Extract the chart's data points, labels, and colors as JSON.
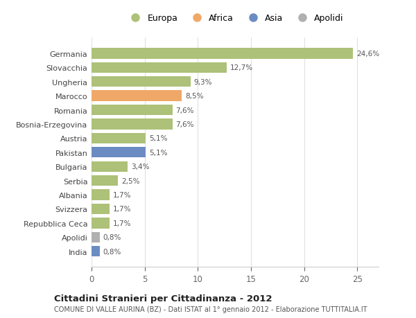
{
  "categories": [
    "Germania",
    "Slovacchia",
    "Ungheria",
    "Marocco",
    "Romania",
    "Bosnia-Erzegovina",
    "Austria",
    "Pakistan",
    "Bulgaria",
    "Serbia",
    "Albania",
    "Svizzera",
    "Repubblica Ceca",
    "Apolidi",
    "India"
  ],
  "values": [
    24.6,
    12.7,
    9.3,
    8.5,
    7.6,
    7.6,
    5.1,
    5.1,
    3.4,
    2.5,
    1.7,
    1.7,
    1.7,
    0.8,
    0.8
  ],
  "labels": [
    "24,6%",
    "12,7%",
    "9,3%",
    "8,5%",
    "7,6%",
    "7,6%",
    "5,1%",
    "5,1%",
    "3,4%",
    "2,5%",
    "1,7%",
    "1,7%",
    "1,7%",
    "0,8%",
    "0,8%"
  ],
  "colors": [
    "#adc178",
    "#adc178",
    "#adc178",
    "#f0a868",
    "#adc178",
    "#adc178",
    "#adc178",
    "#6b8cc2",
    "#adc178",
    "#adc178",
    "#adc178",
    "#adc178",
    "#adc178",
    "#b0b0b0",
    "#6b8cc2"
  ],
  "legend_labels": [
    "Europa",
    "Africa",
    "Asia",
    "Apolidi"
  ],
  "legend_colors": [
    "#adc178",
    "#f0a868",
    "#6b8cc2",
    "#b0b0b0"
  ],
  "title": "Cittadini Stranieri per Cittadinanza - 2012",
  "subtitle": "COMUNE DI VALLE AURINA (BZ) - Dati ISTAT al 1° gennaio 2012 - Elaborazione TUTTITALIA.IT",
  "xlim": [
    0,
    27
  ],
  "xticks": [
    0,
    5,
    10,
    15,
    20,
    25
  ],
  "background_color": "#ffffff",
  "grid_color": "#e0e0e0",
  "bar_height": 0.75
}
